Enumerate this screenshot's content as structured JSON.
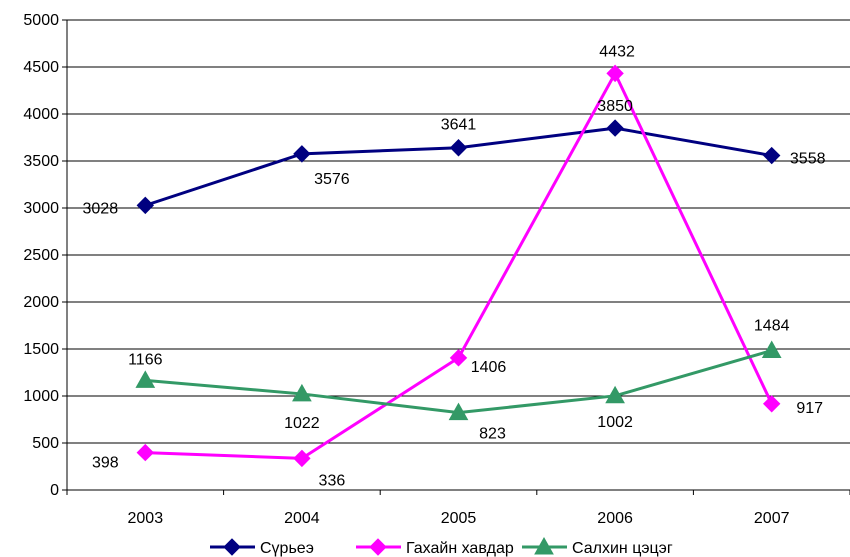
{
  "chart_data": {
    "type": "line",
    "categories": [
      "2003",
      "2004",
      "2005",
      "2006",
      "2007"
    ],
    "ylim": [
      0,
      5000
    ],
    "yticks": [
      0,
      500,
      1000,
      1500,
      2000,
      2500,
      3000,
      3500,
      4000,
      4500,
      5000
    ],
    "grid": true,
    "legend_position": "bottom",
    "series": [
      {
        "name": "Сүрьеэ",
        "values": [
          3028,
          3576,
          3641,
          3850,
          3558
        ],
        "color": "#000080",
        "marker": "diamond"
      },
      {
        "name": "Гахайн хавдар",
        "values": [
          398,
          336,
          1406,
          4432,
          917
        ],
        "color": "#FF00FF",
        "marker": "diamond"
      },
      {
        "name": "Салхин цэцэг",
        "values": [
          1166,
          1022,
          823,
          1002,
          1484
        ],
        "color": "#339966",
        "marker": "triangle"
      }
    ]
  }
}
